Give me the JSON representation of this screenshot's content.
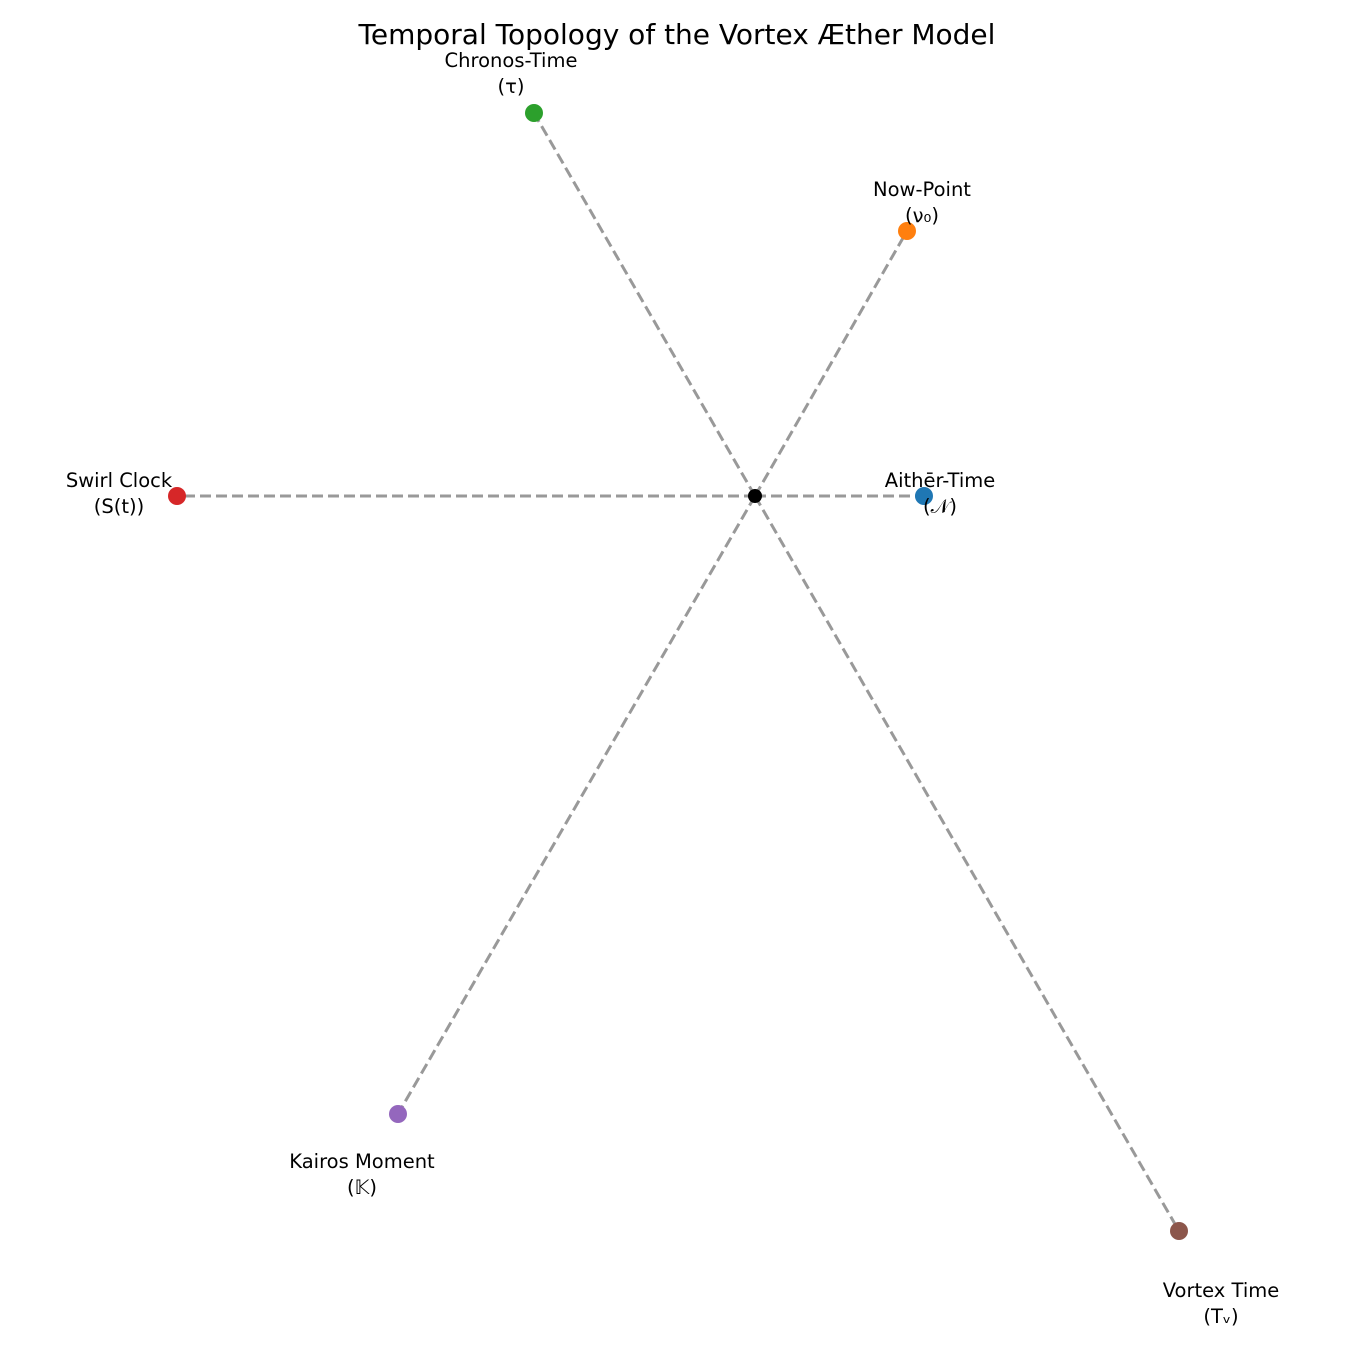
{
  "title": "Temporal Topology of the Vortex Æther Model",
  "colors": {
    "spoke": "#999999",
    "center": "#000000"
  },
  "center": {
    "label": ""
  },
  "nodes": [
    {
      "id": "aither-time",
      "name": "Aithēr-Time",
      "symbol": "(𝒩)",
      "color": "#1f77b4"
    },
    {
      "id": "now-point",
      "name": "Now-Point",
      "symbol": "(ν₀)",
      "color": "#ff7f0e"
    },
    {
      "id": "chronos-time",
      "name": "Chronos-Time",
      "symbol": "(τ)",
      "color": "#2ca02c"
    },
    {
      "id": "swirl-clock",
      "name": "Swirl Clock",
      "symbol": "(S(t))",
      "color": "#d62728"
    },
    {
      "id": "kairos-moment",
      "name": "Kairos Moment",
      "symbol": "(𝕂)",
      "color": "#9467bd"
    },
    {
      "id": "vortex-time",
      "name": "Vortex Time",
      "symbol": "(Tᵥ)",
      "color": "#8c564b"
    }
  ]
}
